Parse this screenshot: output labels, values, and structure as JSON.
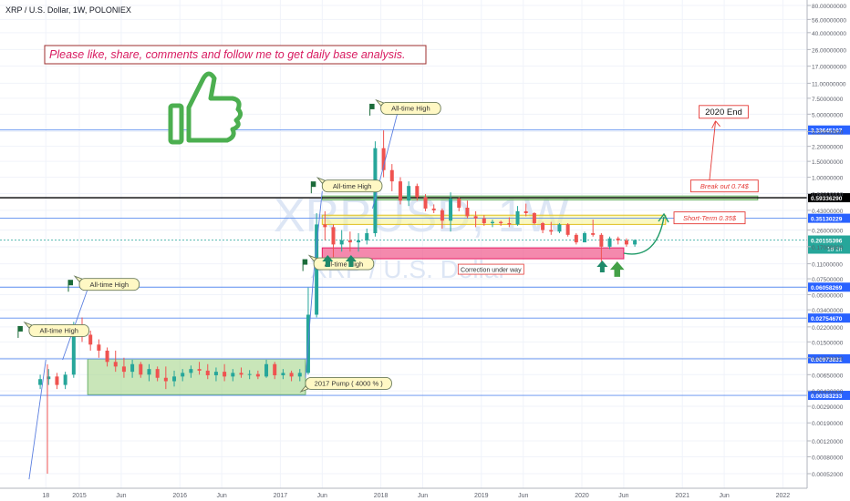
{
  "header": {
    "title": "XRP / U.S. Dollar, 1W, POLONIEX"
  },
  "watermark": {
    "symbol": "XRPUSD, 1W",
    "name": "XRP / U.S. Dollar"
  },
  "banner": {
    "text": "Please like, share, comments and follow me to get daily base analysis."
  },
  "icons": {
    "thumb": "thumbs-up-icon",
    "arrow_up": "arrow-up-icon",
    "flag": "flag-icon"
  },
  "colors": {
    "up": "#26a69a",
    "down": "#ef5350",
    "accent_blue": "#2962ff",
    "support_pink": "#f06292",
    "resistance_yellow": "#f7f39a",
    "breakout_green": "#a5d68a",
    "thumb_green": "#4caf50",
    "red_annot": "#e53935"
  },
  "chart_data": {
    "type": "candlestick",
    "scale": "log",
    "y_range": [
      0.00045,
      110
    ],
    "x_range": [
      "2014-06",
      "2022-03"
    ],
    "x_ticks": [
      {
        "label": "18",
        "date": "2014-09"
      },
      {
        "label": "2015",
        "date": "2015-01"
      },
      {
        "label": "Jun",
        "date": "2015-06"
      },
      {
        "label": "2016",
        "date": "2016-01"
      },
      {
        "label": "Jun",
        "date": "2016-06"
      },
      {
        "label": "2017",
        "date": "2017-01"
      },
      {
        "label": "Jun",
        "date": "2017-06"
      },
      {
        "label": "2018",
        "date": "2018-01"
      },
      {
        "label": "Jun",
        "date": "2018-06"
      },
      {
        "label": "2019",
        "date": "2019-01"
      },
      {
        "label": "Jun",
        "date": "2019-06"
      },
      {
        "label": "2020",
        "date": "2020-01"
      },
      {
        "label": "Jun",
        "date": "2020-06"
      },
      {
        "label": "2021",
        "date": "2021-01"
      },
      {
        "label": "Jun",
        "date": "2021-06"
      },
      {
        "label": "2022",
        "date": "2022-01"
      }
    ],
    "y_ticks": [
      "80.00000000",
      "56.00000000",
      "40.00000000",
      "26.00000000",
      "17.00000000",
      "11.00000000",
      "7.50000000",
      "5.00000000",
      "3.20000000",
      "2.20000000",
      "1.50000000",
      "1.00000000",
      "0.66000000",
      "0.43000000",
      "0.26000000",
      "0.17000000",
      "0.11000000",
      "0.07500000",
      "0.05000000",
      "0.03400000",
      "0.02200000",
      "0.01500000",
      "0.01000000",
      "0.00650000",
      "0.00430000",
      "0.00290000",
      "0.00190000",
      "0.00120000",
      "0.00080000",
      "0.00052000"
    ],
    "price_levels": [
      {
        "value": 3.33645107,
        "label": "3.33645107",
        "style": "blue"
      },
      {
        "value": 0.5933629,
        "label": "0.59336290",
        "style": "black"
      },
      {
        "value": 0.35130229,
        "label": "0.35130229",
        "style": "blue"
      },
      {
        "value": 0.06058269,
        "label": "0.06058269",
        "style": "blue"
      },
      {
        "value": 0.0275467,
        "label": "0.02754670",
        "style": "blue"
      },
      {
        "value": 0.00973831,
        "label": "0.00973831",
        "style": "blue"
      },
      {
        "value": 0.00383233,
        "label": "0.00383233",
        "style": "blue"
      }
    ],
    "current_price": {
      "value": 0.20155396,
      "label": "0.20155396",
      "countdown": "1d 1h"
    },
    "candles": [
      [
        "2014-08",
        0.005,
        0.0065,
        0.0045,
        0.0058
      ],
      [
        "2014-09",
        0.0058,
        0.0075,
        0.005,
        0.0062
      ],
      [
        "2014-10",
        0.0062,
        0.0068,
        0.0045,
        0.005
      ],
      [
        "2014-11",
        0.005,
        0.007,
        0.0045,
        0.0065
      ],
      [
        "2014-12",
        0.0065,
        0.025,
        0.006,
        0.022
      ],
      [
        "2015-01",
        0.022,
        0.028,
        0.015,
        0.018
      ],
      [
        "2015-02",
        0.018,
        0.02,
        0.012,
        0.014
      ],
      [
        "2015-03",
        0.014,
        0.016,
        0.01,
        0.012
      ],
      [
        "2015-04",
        0.012,
        0.013,
        0.008,
        0.009
      ],
      [
        "2015-05",
        0.009,
        0.012,
        0.007,
        0.008
      ],
      [
        "2015-06",
        0.008,
        0.01,
        0.006,
        0.007
      ],
      [
        "2015-07",
        0.007,
        0.0095,
        0.006,
        0.0085
      ],
      [
        "2015-08",
        0.0085,
        0.009,
        0.006,
        0.0065
      ],
      [
        "2015-09",
        0.0065,
        0.0085,
        0.0055,
        0.0075
      ],
      [
        "2015-10",
        0.0075,
        0.008,
        0.0055,
        0.006
      ],
      [
        "2015-11",
        0.006,
        0.008,
        0.0045,
        0.0055
      ],
      [
        "2015-12",
        0.0055,
        0.0072,
        0.0048,
        0.0062
      ],
      [
        "2016-01",
        0.0062,
        0.0075,
        0.0055,
        0.0068
      ],
      [
        "2016-02",
        0.0068,
        0.0082,
        0.006,
        0.0075
      ],
      [
        "2016-03",
        0.0075,
        0.009,
        0.0065,
        0.0072
      ],
      [
        "2016-04",
        0.0072,
        0.0085,
        0.0058,
        0.0064
      ],
      [
        "2016-05",
        0.0064,
        0.0078,
        0.0055,
        0.007
      ],
      [
        "2016-06",
        0.007,
        0.0085,
        0.0055,
        0.0062
      ],
      [
        "2016-07",
        0.0062,
        0.0075,
        0.0055,
        0.0068
      ],
      [
        "2016-08",
        0.0068,
        0.0078,
        0.006,
        0.0065
      ],
      [
        "2016-09",
        0.0065,
        0.0073,
        0.0058,
        0.0066
      ],
      [
        "2016-10",
        0.0066,
        0.0072,
        0.0058,
        0.0062
      ],
      [
        "2016-11",
        0.0062,
        0.0095,
        0.006,
        0.0085
      ],
      [
        "2016-12",
        0.0085,
        0.009,
        0.0058,
        0.0064
      ],
      [
        "2017-01",
        0.0064,
        0.0075,
        0.0058,
        0.0068
      ],
      [
        "2017-02",
        0.0068,
        0.0072,
        0.0055,
        0.0062
      ],
      [
        "2017-03",
        0.0062,
        0.0075,
        0.0055,
        0.0068
      ],
      [
        "2017-04",
        0.0068,
        0.06,
        0.0065,
        0.03
      ],
      [
        "2017-05",
        0.03,
        0.4,
        0.028,
        0.3
      ],
      [
        "2017-06",
        0.3,
        0.42,
        0.2,
        0.28
      ],
      [
        "2017-07",
        0.28,
        0.3,
        0.13,
        0.18
      ],
      [
        "2017-08",
        0.18,
        0.26,
        0.15,
        0.2
      ],
      [
        "2017-09",
        0.2,
        0.25,
        0.15,
        0.19
      ],
      [
        "2017-10",
        0.19,
        0.24,
        0.15,
        0.2
      ],
      [
        "2017-11",
        0.2,
        0.27,
        0.18,
        0.24
      ],
      [
        "2017-12",
        0.24,
        2.5,
        0.22,
        2.1
      ],
      [
        "2018-01",
        2.1,
        3.3,
        1.0,
        1.2
      ],
      [
        "2018-02",
        1.2,
        1.4,
        0.7,
        0.9
      ],
      [
        "2018-03",
        0.9,
        1.0,
        0.5,
        0.55
      ],
      [
        "2018-04",
        0.55,
        0.9,
        0.48,
        0.8
      ],
      [
        "2018-05",
        0.8,
        0.85,
        0.55,
        0.6
      ],
      [
        "2018-06",
        0.6,
        0.65,
        0.42,
        0.45
      ],
      [
        "2018-07",
        0.45,
        0.5,
        0.4,
        0.43
      ],
      [
        "2018-08",
        0.43,
        0.45,
        0.27,
        0.33
      ],
      [
        "2018-09",
        0.33,
        0.68,
        0.25,
        0.58
      ],
      [
        "2018-10",
        0.58,
        0.6,
        0.42,
        0.46
      ],
      [
        "2018-11",
        0.46,
        0.55,
        0.35,
        0.37
      ],
      [
        "2018-12",
        0.37,
        0.42,
        0.28,
        0.35
      ],
      [
        "2019-01",
        0.35,
        0.38,
        0.29,
        0.31
      ],
      [
        "2019-02",
        0.31,
        0.34,
        0.28,
        0.32
      ],
      [
        "2019-03",
        0.32,
        0.33,
        0.29,
        0.31
      ],
      [
        "2019-04",
        0.31,
        0.36,
        0.28,
        0.3
      ],
      [
        "2019-05",
        0.3,
        0.48,
        0.29,
        0.42
      ],
      [
        "2019-06",
        0.42,
        0.51,
        0.37,
        0.4
      ],
      [
        "2019-07",
        0.4,
        0.41,
        0.3,
        0.31
      ],
      [
        "2019-08",
        0.31,
        0.32,
        0.24,
        0.26
      ],
      [
        "2019-09",
        0.26,
        0.32,
        0.23,
        0.25
      ],
      [
        "2019-10",
        0.25,
        0.31,
        0.24,
        0.3
      ],
      [
        "2019-11",
        0.3,
        0.31,
        0.22,
        0.23
      ],
      [
        "2019-12",
        0.23,
        0.24,
        0.18,
        0.19
      ],
      [
        "2020-01",
        0.19,
        0.25,
        0.19,
        0.24
      ],
      [
        "2020-02",
        0.24,
        0.34,
        0.22,
        0.23
      ],
      [
        "2020-03",
        0.23,
        0.24,
        0.11,
        0.17
      ],
      [
        "2020-04",
        0.17,
        0.22,
        0.16,
        0.21
      ],
      [
        "2020-05",
        0.21,
        0.22,
        0.18,
        0.2
      ],
      [
        "2020-06",
        0.2,
        0.21,
        0.17,
        0.18
      ],
      [
        "2020-07",
        0.18,
        0.205,
        0.17,
        0.2015
      ]
    ],
    "zones": [
      {
        "label": "",
        "from": "2015-02",
        "to": "2017-04",
        "low": 0.0039,
        "high": 0.0097,
        "color": "#a5d68a"
      },
      {
        "label": "",
        "from": "2017-06",
        "to": "2020-11",
        "low": 0.3,
        "high": 0.38,
        "color": "#f7f39a"
      },
      {
        "label": "",
        "from": "2017-06",
        "to": "2021-10",
        "low": 0.56,
        "high": 0.62,
        "color": "#a5d68a"
      },
      {
        "label": "Correction under way",
        "from": "2017-06",
        "to": "2020-06",
        "low": 0.125,
        "high": 0.165,
        "color": "#f06292"
      }
    ],
    "annotations": [
      {
        "text": "All-time High",
        "date": "2014-07",
        "value": 0.02
      },
      {
        "text": "All-time High",
        "date": "2015-01",
        "value": 0.065
      },
      {
        "text": "All-time High",
        "date": "2017-05",
        "value": 0.11
      },
      {
        "text": "All-time High",
        "date": "2017-06",
        "value": 0.8
      },
      {
        "text": "All-time High",
        "date": "2018-01",
        "value": 5.8
      },
      {
        "text": "2017 Pump ( 4000 % )",
        "date": "2017-04",
        "value": 0.0052
      },
      {
        "text": "Short-Term 0.35$",
        "date": "2020-12",
        "value": 0.355
      },
      {
        "text": "Break out 0.74$",
        "date": "2021-02",
        "value": 0.8
      },
      {
        "text": "2020 End",
        "date": "2021-03",
        "value": 5.3
      }
    ]
  }
}
